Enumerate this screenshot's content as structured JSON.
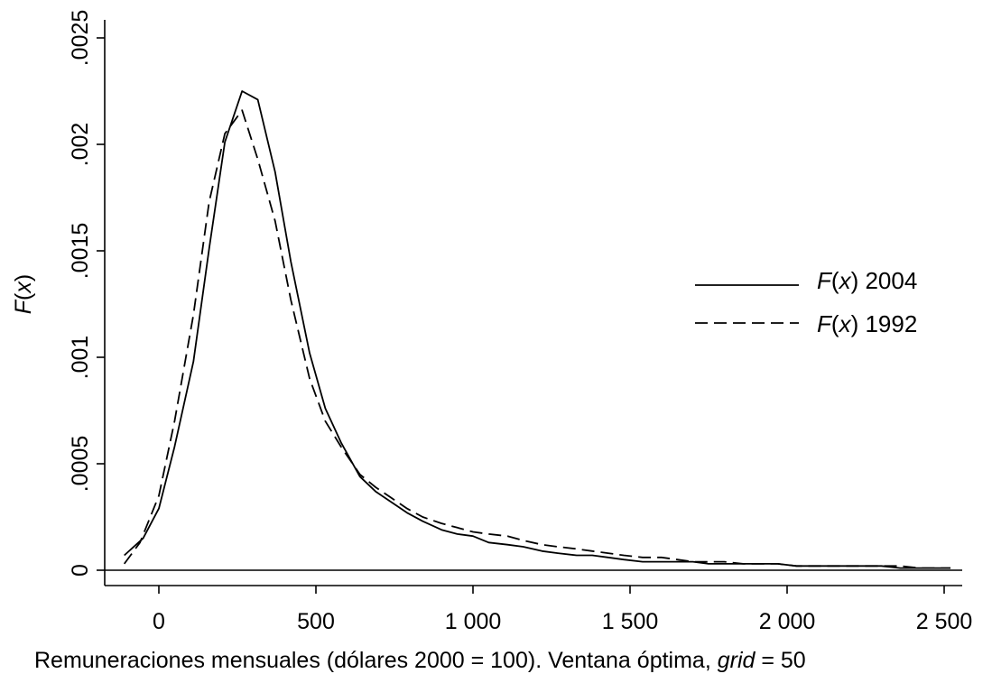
{
  "chart_data": {
    "type": "line",
    "xlabel": {
      "text": "Remuneraciones mensuales (dólares 2000 = 100). Ventana óptima, ",
      "italic_part": "grid",
      "suffix": " = 50"
    },
    "ylabel": {
      "italic_part": "F",
      "open": "(",
      "italic_var": "x",
      "close": ")"
    },
    "xlim": [
      -170,
      2560
    ],
    "ylim": [
      -8e-05,
      0.0026
    ],
    "x_ticks": [
      0,
      500,
      1000,
      1500,
      2000,
      2500
    ],
    "x_tick_labels": [
      "0",
      "500",
      "1 000",
      "1 500",
      "2 000",
      "2 500"
    ],
    "y_ticks": [
      0,
      0.0005,
      0.001,
      0.0015,
      0.002,
      0.0025
    ],
    "y_tick_labels": [
      "0",
      ".0005",
      ".001",
      ".0015",
      ".002",
      ".0025"
    ],
    "zero_line": true,
    "grid": false,
    "legend_position": "right",
    "series": [
      {
        "name": "F(x) 2004",
        "name_italic": "F",
        "name_open": "(",
        "name_var": "x",
        "name_close": ")",
        "name_year": " 2004",
        "style": "solid",
        "points": [
          [
            -110,
            7e-05
          ],
          [
            -50,
            0.00015
          ],
          [
            0,
            0.00029
          ],
          [
            50,
            0.00058
          ],
          [
            110,
            0.00098
          ],
          [
            160,
            0.00151
          ],
          [
            210,
            0.00201
          ],
          [
            265,
            0.00225
          ],
          [
            315,
            0.00221
          ],
          [
            370,
            0.00187
          ],
          [
            420,
            0.00145
          ],
          [
            480,
            0.00102
          ],
          [
            530,
            0.00076
          ],
          [
            580,
            0.0006
          ],
          [
            640,
            0.00044
          ],
          [
            690,
            0.00037
          ],
          [
            740,
            0.00032
          ],
          [
            790,
            0.00027
          ],
          [
            840,
            0.00023
          ],
          [
            900,
            0.00019
          ],
          [
            950,
            0.00017
          ],
          [
            1000,
            0.00016
          ],
          [
            1050,
            0.00013
          ],
          [
            1110,
            0.00012
          ],
          [
            1160,
            0.00011
          ],
          [
            1220,
            9e-05
          ],
          [
            1270,
            8e-05
          ],
          [
            1330,
            7e-05
          ],
          [
            1380,
            7e-05
          ],
          [
            1430,
            6e-05
          ],
          [
            1480,
            5e-05
          ],
          [
            1540,
            4e-05
          ],
          [
            1600,
            4e-05
          ],
          [
            1650,
            4e-05
          ],
          [
            1700,
            4e-05
          ],
          [
            1750,
            3e-05
          ],
          [
            1800,
            3e-05
          ],
          [
            1860,
            3e-05
          ],
          [
            1920,
            3e-05
          ],
          [
            1970,
            3e-05
          ],
          [
            2030,
            2e-05
          ],
          [
            2080,
            2e-05
          ],
          [
            2140,
            2e-05
          ],
          [
            2200,
            2e-05
          ],
          [
            2250,
            2e-05
          ],
          [
            2300,
            2e-05
          ],
          [
            2360,
            1e-05
          ],
          [
            2420,
            1e-05
          ],
          [
            2470,
            1e-05
          ],
          [
            2520,
            1e-05
          ]
        ]
      },
      {
        "name": "F(x) 1992",
        "name_italic": "F",
        "name_open": "(",
        "name_var": "x",
        "name_close": ")",
        "name_year": " 1992",
        "style": "dashed",
        "points": [
          [
            -110,
            3e-05
          ],
          [
            -60,
            0.00013
          ],
          [
            0,
            0.00035
          ],
          [
            50,
            0.0007
          ],
          [
            110,
            0.0012
          ],
          [
            160,
            0.00173
          ],
          [
            210,
            0.00205
          ],
          [
            265,
            0.00216
          ],
          [
            315,
            0.00193
          ],
          [
            370,
            0.00164
          ],
          [
            420,
            0.00127
          ],
          [
            480,
            0.0009
          ],
          [
            530,
            0.0007
          ],
          [
            580,
            0.00058
          ],
          [
            640,
            0.00045
          ],
          [
            690,
            0.00039
          ],
          [
            740,
            0.00034
          ],
          [
            790,
            0.00029
          ],
          [
            840,
            0.00025
          ],
          [
            900,
            0.00022
          ],
          [
            950,
            0.0002
          ],
          [
            1000,
            0.00018
          ],
          [
            1050,
            0.00017
          ],
          [
            1110,
            0.00016
          ],
          [
            1160,
            0.00014
          ],
          [
            1220,
            0.00012
          ],
          [
            1270,
            0.00011
          ],
          [
            1330,
            0.0001
          ],
          [
            1380,
            9e-05
          ],
          [
            1430,
            8e-05
          ],
          [
            1480,
            7e-05
          ],
          [
            1540,
            6e-05
          ],
          [
            1600,
            6e-05
          ],
          [
            1650,
            5e-05
          ],
          [
            1700,
            4e-05
          ],
          [
            1750,
            4e-05
          ],
          [
            1800,
            4e-05
          ],
          [
            1860,
            3e-05
          ],
          [
            1920,
            3e-05
          ],
          [
            1970,
            3e-05
          ],
          [
            2030,
            2e-05
          ],
          [
            2080,
            2e-05
          ],
          [
            2140,
            2e-05
          ],
          [
            2200,
            2e-05
          ],
          [
            2250,
            2e-05
          ],
          [
            2300,
            2e-05
          ],
          [
            2360,
            2e-05
          ],
          [
            2420,
            1e-05
          ],
          [
            2470,
            1e-05
          ],
          [
            2520,
            1e-05
          ]
        ]
      }
    ]
  }
}
